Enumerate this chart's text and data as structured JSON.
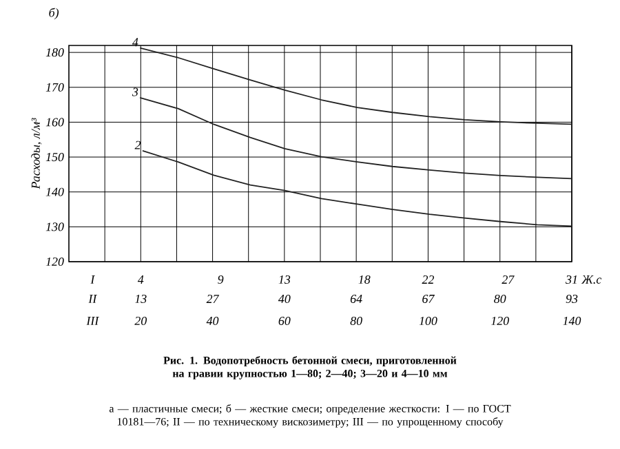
{
  "chart_data": {
    "type": "line",
    "title": "б)",
    "ylabel": "Расходы, л/м³",
    "xlabel": "III",
    "x2label": "I",
    "xlim": [
      0,
      140
    ],
    "x2lim": [
      -0.5,
      31
    ],
    "ylim": [
      120,
      182
    ],
    "yticks": [
      120,
      130,
      140,
      150,
      160,
      170,
      180
    ],
    "xticks": [
      {
        "value": 10,
        "label": null
      },
      20,
      {
        "value": 30,
        "label": null
      },
      40,
      {
        "value": 50,
        "label": null
      },
      60,
      {
        "value": 70,
        "label": null
      },
      80,
      {
        "value": 90,
        "label": null
      },
      100,
      {
        "value": 110,
        "label": null
      },
      120,
      {
        "value": 130,
        "label": null
      },
      140
    ],
    "x2ticks": [
      4,
      9,
      13,
      18,
      22,
      27,
      31
    ],
    "grid": true,
    "marker": "none",
    "line_style": "solid",
    "series": [
      {
        "name": "2",
        "color": "#222222",
        "x": [
          20.5,
          30.4,
          40.3,
          50.5,
          60.1,
          70.3,
          80.3,
          90.1,
          100.4,
          110.2,
          120.2,
          130.4,
          140
        ],
        "values": [
          151.8,
          148.6,
          144.8,
          142.0,
          140.4,
          138.1,
          136.5,
          135.0,
          133.6,
          132.5,
          131.5,
          130.6,
          130.2
        ]
      },
      {
        "name": "3",
        "color": "#222222",
        "x": [
          19.8,
          30.4,
          40.3,
          50.5,
          60.1,
          70.3,
          80.3,
          90.1,
          100.4,
          110.2,
          120.2,
          130.4,
          140
        ],
        "values": [
          167.0,
          163.9,
          159.4,
          155.6,
          152.4,
          150.1,
          148.6,
          147.3,
          146.3,
          145.4,
          144.7,
          144.2,
          143.8
        ]
      },
      {
        "name": "4",
        "color": "#222222",
        "x": [
          19.8,
          30.4,
          40.3,
          50.5,
          60.1,
          70.3,
          80.3,
          90.1,
          100.4,
          110.2,
          120.2,
          130.4,
          140
        ],
        "values": [
          181.3,
          178.5,
          175.3,
          172.1,
          169.2,
          166.4,
          164.2,
          162.8,
          161.6,
          160.7,
          160.1,
          159.7,
          159.4
        ]
      }
    ],
    "annotations": [
      "Рис. 1. Водопотребность бетонной смеси, приготовленной на гравии крупностью 1—80; 2—40; 3—20 и 4—10 мм",
      "а — пластичные смеси; б — жесткие смеси; определение жесткости: I — по ГОСТ 10181—76; II — по техническому вискозиметру; III — по упрощенному способу",
      "Ж.с",
      "II",
      "13",
      "27",
      "40",
      "64",
      "67",
      "80",
      "93"
    ]
  }
}
